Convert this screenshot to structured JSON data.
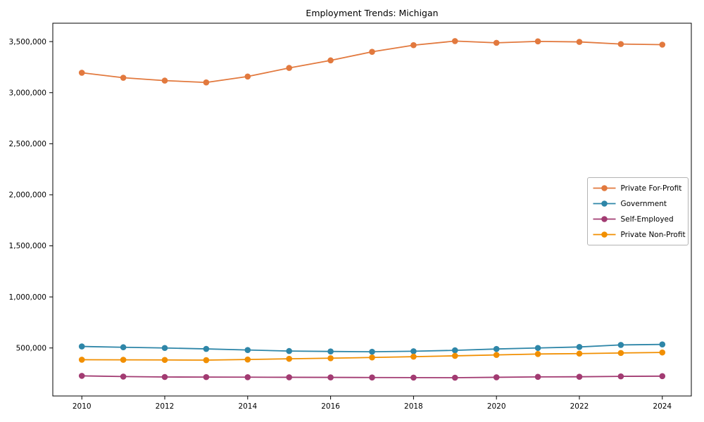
{
  "figure": {
    "background_color": "#ffffff",
    "frame_color": "#000000",
    "tick_label_color": "#000000"
  },
  "chart_data": {
    "type": "line",
    "title": "Employment Trends: Michigan",
    "xlabel": "",
    "ylabel": "",
    "grid": false,
    "x": [
      2010,
      2011,
      2012,
      2013,
      2014,
      2015,
      2016,
      2017,
      2018,
      2019,
      2020,
      2021,
      2022,
      2023,
      2024
    ],
    "xticks": [
      2010,
      2012,
      2014,
      2016,
      2018,
      2020,
      2022,
      2024
    ],
    "yticks": [
      500000,
      1000000,
      1500000,
      2000000,
      2500000,
      3000000,
      3500000
    ],
    "ytick_labels": [
      "500,000",
      "1,000,000",
      "1,500,000",
      "2,000,000",
      "2,500,000",
      "3,000,000",
      "3,500,000"
    ],
    "xlim": [
      2009.3,
      2024.7
    ],
    "ylim": [
      30000,
      3680000
    ],
    "marker": "circle",
    "legend_position": "center right",
    "legend_border_color": "#b3b3b3",
    "series": [
      {
        "id": "private-for-profit",
        "name": "Private For-Profit",
        "color": "#E2793E",
        "values": [
          3195000,
          3146000,
          3118000,
          3100000,
          3158000,
          3242000,
          3316000,
          3400000,
          3465000,
          3505000,
          3488000,
          3502000,
          3497000,
          3476000,
          3470000
        ]
      },
      {
        "id": "government",
        "name": "Government",
        "color": "#2E86A8",
        "values": [
          515000,
          507000,
          500000,
          491000,
          480000,
          470000,
          466000,
          463000,
          468000,
          477000,
          490000,
          500000,
          510000,
          530000,
          535000
        ]
      },
      {
        "id": "self-employed",
        "name": "Self-Employed",
        "color": "#A23B72",
        "values": [
          227000,
          220000,
          216000,
          215000,
          214000,
          213000,
          212000,
          211000,
          210000,
          209000,
          213000,
          217000,
          218000,
          222000,
          224000
        ]
      },
      {
        "id": "private-non-profit",
        "name": "Private Non-Profit",
        "color": "#F18F01",
        "values": [
          385000,
          384000,
          383000,
          381000,
          387000,
          394000,
          400000,
          407000,
          415000,
          423000,
          432000,
          441000,
          445000,
          451000,
          456000
        ]
      }
    ]
  }
}
